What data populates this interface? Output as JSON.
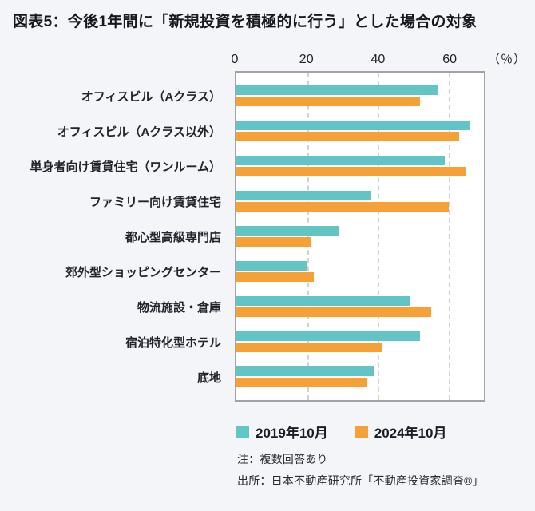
{
  "page": {
    "title": "図表5：今後1年間に「新規投資を積極的に行う」とした場合の対象",
    "background_color": "#f3f5f9"
  },
  "chart_data": {
    "type": "bar",
    "orientation": "horizontal",
    "title": "図表5：今後1年間に「新規投資を積極的に行う」とした場合の対象",
    "unit_label": "（％）",
    "x_ticks": [
      0,
      20,
      40,
      60
    ],
    "xlim": [
      0,
      70
    ],
    "grid": "vertical-dashed",
    "legend_position": "bottom",
    "categories": [
      "オフィスビル（Aクラス）",
      "オフィスビル（Aクラス以外）",
      "単身者向け賃貸住宅（ワンルーム）",
      "ファミリー向け賃貸住宅",
      "都心型高級専門店",
      "郊外型ショッピングセンター",
      "物流施設・倉庫",
      "宿泊特化型ホテル",
      "底地"
    ],
    "series": [
      {
        "name": "2019年10月",
        "color": "#62c4c5",
        "values": [
          57,
          66,
          59,
          38,
          29,
          20,
          49,
          52,
          39
        ]
      },
      {
        "name": "2024年10月",
        "color": "#f6a135",
        "values": [
          52,
          63,
          65,
          60,
          21,
          22,
          55,
          41,
          37
        ]
      }
    ]
  },
  "footer": {
    "note": "注：複数回答あり",
    "source": "出所：日本不動産研究所「不動産投資家調査®」"
  }
}
